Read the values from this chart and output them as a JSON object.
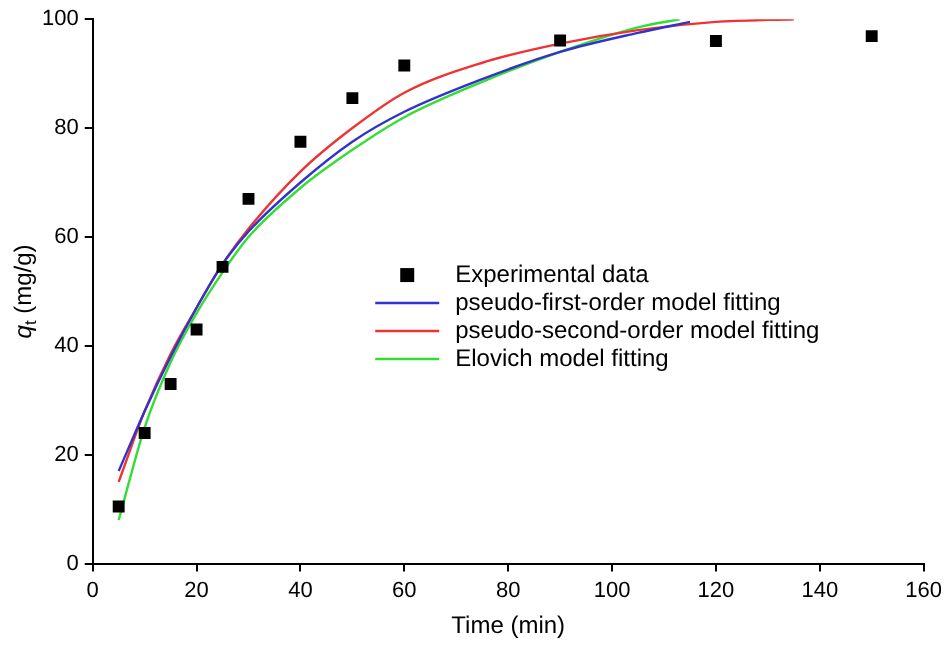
{
  "chart_data": {
    "type": "scatter",
    "xlabel": "Time (min)",
    "ylabel": "q$_{t}$ (mg/g)",
    "xlim": [
      0,
      160
    ],
    "xticks": [
      0,
      20,
      40,
      60,
      80,
      100,
      120,
      140,
      160
    ],
    "ylim": [
      0,
      100
    ],
    "yticks": [
      0,
      20,
      40,
      60,
      80,
      100
    ],
    "grid": false,
    "legend": "center",
    "series": [
      {
        "name": "Experimental data",
        "marker": "square",
        "color": "#000000",
        "x": [
          5,
          10,
          15,
          20,
          25,
          30,
          40,
          50,
          60,
          90,
          120,
          150
        ],
        "values": [
          10.5,
          24,
          33,
          43,
          54.5,
          67,
          77.5,
          85.5,
          91.5,
          96.1,
          96,
          96.9
        ]
      },
      {
        "name": "pseudo-first-order model fitting",
        "type": "line",
        "marker": "none",
        "color": "#3333cc",
        "x": [
          5,
          10,
          15,
          20,
          25,
          30,
          40,
          50,
          60,
          75,
          90,
          105,
          115
        ],
        "values": [
          17,
          28,
          38,
          47,
          55,
          61,
          70,
          77.5,
          83,
          89,
          94,
          97.5,
          99.5
        ]
      },
      {
        "name": "pseudo-second-order model fitting",
        "type": "line",
        "marker": "none",
        "color": "#ee3333",
        "x": [
          5,
          10,
          15,
          20,
          25,
          30,
          40,
          50,
          60,
          75,
          90,
          105,
          120,
          135
        ],
        "values": [
          15,
          28,
          38.5,
          47,
          55,
          61.5,
          72,
          80,
          86.5,
          92,
          95.5,
          98,
          99.5,
          100
        ]
      },
      {
        "name": "Elovich model fitting",
        "type": "line",
        "marker": "none",
        "color": "#33dd33",
        "x": [
          5,
          10,
          15,
          20,
          25,
          30,
          40,
          50,
          60,
          75,
          90,
          105,
          113
        ],
        "values": [
          8,
          25,
          37,
          46,
          53.5,
          60,
          69,
          76,
          82,
          88.5,
          94,
          98.5,
          100
        ]
      }
    ]
  }
}
